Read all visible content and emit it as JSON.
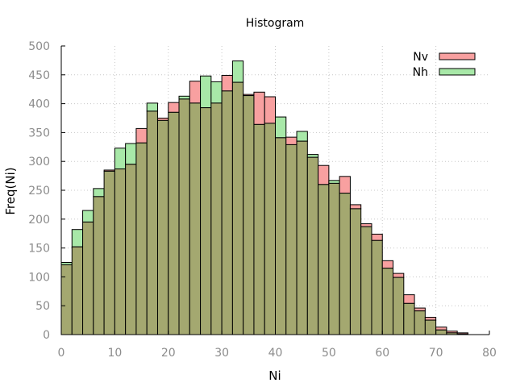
{
  "chart_data": {
    "type": "bar",
    "title": "Histogram",
    "xlabel": "Ni",
    "ylabel": "Freq(Ni)",
    "xlim": [
      0,
      80
    ],
    "ylim": [
      0,
      500
    ],
    "xticks": [
      0,
      10,
      20,
      30,
      40,
      50,
      60,
      70,
      80
    ],
    "yticks": [
      0,
      50,
      100,
      150,
      200,
      250,
      300,
      350,
      400,
      450,
      500
    ],
    "grid": true,
    "legend_position": "top-right",
    "bin_width": 2,
    "x": [
      0,
      2,
      4,
      6,
      8,
      10,
      12,
      14,
      16,
      18,
      20,
      22,
      24,
      26,
      28,
      30,
      32,
      34,
      36,
      38,
      40,
      42,
      44,
      46,
      48,
      50,
      52,
      54,
      56,
      58,
      60,
      62,
      64,
      66,
      68,
      70,
      72,
      74
    ],
    "series": [
      {
        "name": "Nv",
        "color": "#f8a0a0",
        "values": [
          121,
          152,
          195,
          239,
          285,
          287,
          295,
          357,
          387,
          375,
          402,
          408,
          439,
          393,
          401,
          449,
          437,
          416,
          420,
          412,
          341,
          342,
          335,
          307,
          293,
          262,
          274,
          225,
          192,
          174,
          128,
          106,
          69,
          46,
          30,
          13,
          6,
          3
        ]
      },
      {
        "name": "Nh",
        "color": "#a8e8a8",
        "values": [
          125,
          182,
          215,
          253,
          283,
          323,
          331,
          332,
          401,
          371,
          385,
          413,
          401,
          448,
          438,
          422,
          474,
          414,
          364,
          366,
          377,
          329,
          352,
          312,
          260,
          267,
          245,
          218,
          187,
          163,
          115,
          99,
          54,
          41,
          25,
          8,
          3,
          1
        ]
      }
    ],
    "overlap_color": "#a4a870"
  }
}
